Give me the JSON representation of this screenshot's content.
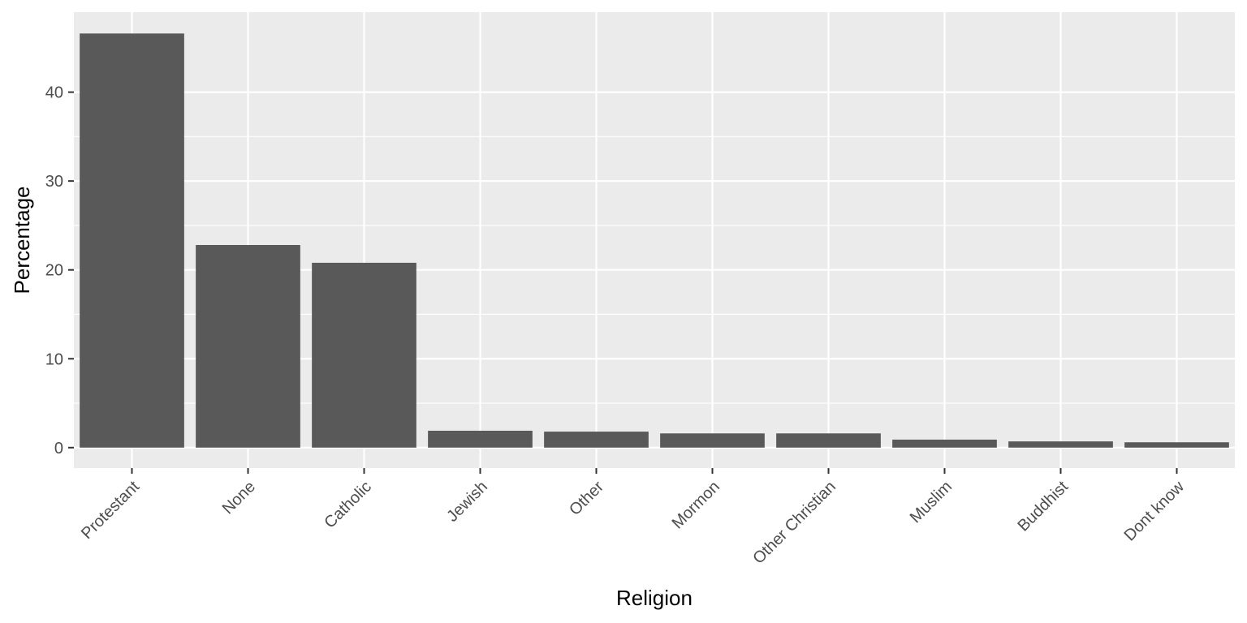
{
  "chart_data": {
    "type": "bar",
    "title": "",
    "xlabel": "Religion",
    "ylabel": "Percentage",
    "categories": [
      "Protestant",
      "None",
      "Catholic",
      "Jewish",
      "Other",
      "Mormon",
      "Other Christian",
      "Muslim",
      "Buddhist",
      "Dont know"
    ],
    "values": [
      46.6,
      22.8,
      20.8,
      1.9,
      1.8,
      1.6,
      1.6,
      0.9,
      0.7,
      0.6
    ],
    "ylim": [
      -2.3,
      49
    ],
    "yticks": [
      0,
      10,
      20,
      30,
      40
    ],
    "ytick_labels": [
      "0",
      "10",
      "20",
      "30",
      "40"
    ],
    "grid": true,
    "legend": "none"
  },
  "colors": {
    "panel_background": "#ebebeb",
    "grid_major": "#ffffff",
    "bar_fill": "#595959",
    "tick_text": "#4d4d4d",
    "axis_ticks": "#333333"
  }
}
